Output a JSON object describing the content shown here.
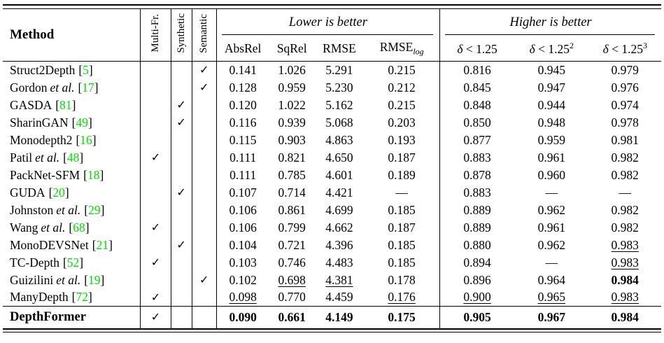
{
  "table": {
    "method_header": "Method",
    "rotated_headers": [
      "Multi-Fr.",
      "Synthetic",
      "Semantic"
    ],
    "groups": {
      "lower": "Lower is better",
      "higher": "Higher is better"
    },
    "metric_headers": [
      "AbsRel",
      "SqRel",
      "RMSE"
    ],
    "rmse_log_header": {
      "base": "RMSE",
      "sub": "log"
    },
    "delta_headers": [
      {
        "sym": "δ",
        "rest": " < 1.25",
        "sup": ""
      },
      {
        "sym": "δ",
        "rest": " < 1.25",
        "sup": "2"
      },
      {
        "sym": "δ",
        "rest": " < 1.25",
        "sup": "3"
      }
    ],
    "checkmark": "✓",
    "dash": "—",
    "citation_color": "#00e000",
    "rows": [
      {
        "name": "Struct2Depth",
        "etal": false,
        "cite": "5",
        "checks": [
          false,
          false,
          true
        ],
        "vals": [
          "0.141",
          "1.026",
          "5.291",
          "0.215",
          "0.816",
          "0.945",
          "0.979"
        ],
        "marks": [
          "",
          "",
          "",
          "",
          "",
          "",
          ""
        ]
      },
      {
        "name": "Gordon",
        "etal": true,
        "cite": "17",
        "checks": [
          false,
          false,
          true
        ],
        "vals": [
          "0.128",
          "0.959",
          "5.230",
          "0.212",
          "0.845",
          "0.947",
          "0.976"
        ],
        "marks": [
          "",
          "",
          "",
          "",
          "",
          "",
          ""
        ]
      },
      {
        "name": "GASDA",
        "etal": false,
        "cite": "81",
        "checks": [
          false,
          true,
          false
        ],
        "vals": [
          "0.120",
          "1.022",
          "5.162",
          "0.215",
          "0.848",
          "0.944",
          "0.974"
        ],
        "marks": [
          "",
          "",
          "",
          "",
          "",
          "",
          ""
        ]
      },
      {
        "name": "SharinGAN",
        "etal": false,
        "cite": "49",
        "checks": [
          false,
          true,
          false
        ],
        "vals": [
          "0.116",
          "0.939",
          "5.068",
          "0.203",
          "0.850",
          "0.948",
          "0.978"
        ],
        "marks": [
          "",
          "",
          "",
          "",
          "",
          "",
          ""
        ]
      },
      {
        "name": "Monodepth2",
        "etal": false,
        "cite": "16",
        "checks": [
          false,
          false,
          false
        ],
        "vals": [
          "0.115",
          "0.903",
          "4.863",
          "0.193",
          "0.877",
          "0.959",
          "0.981"
        ],
        "marks": [
          "",
          "",
          "",
          "",
          "",
          "",
          ""
        ]
      },
      {
        "name": "Patil",
        "etal": true,
        "cite": "48",
        "checks": [
          true,
          false,
          false
        ],
        "vals": [
          "0.111",
          "0.821",
          "4.650",
          "0.187",
          "0.883",
          "0.961",
          "0.982"
        ],
        "marks": [
          "",
          "",
          "",
          "",
          "",
          "",
          ""
        ]
      },
      {
        "name": "PackNet-SFM",
        "etal": false,
        "cite": "18",
        "checks": [
          false,
          false,
          false
        ],
        "vals": [
          "0.111",
          "0.785",
          "4.601",
          "0.189",
          "0.878",
          "0.960",
          "0.982"
        ],
        "marks": [
          "",
          "",
          "",
          "",
          "",
          "",
          ""
        ]
      },
      {
        "name": "GUDA",
        "etal": false,
        "cite": "20",
        "checks": [
          false,
          true,
          false
        ],
        "vals": [
          "0.107",
          "0.714",
          "4.421",
          "—",
          "0.883",
          "—",
          "—"
        ],
        "marks": [
          "",
          "",
          "",
          "",
          "",
          "",
          ""
        ]
      },
      {
        "name": "Johnston",
        "etal": true,
        "cite": "29",
        "checks": [
          false,
          false,
          false
        ],
        "vals": [
          "0.106",
          "0.861",
          "4.699",
          "0.185",
          "0.889",
          "0.962",
          "0.982"
        ],
        "marks": [
          "",
          "",
          "",
          "",
          "",
          "",
          ""
        ]
      },
      {
        "name": "Wang",
        "etal": true,
        "cite": "68",
        "checks": [
          true,
          false,
          false
        ],
        "vals": [
          "0.106",
          "0.799",
          "4.662",
          "0.187",
          "0.889",
          "0.961",
          "0.982"
        ],
        "marks": [
          "",
          "",
          "",
          "",
          "",
          "",
          ""
        ]
      },
      {
        "name": "MonoDEVSNet",
        "etal": false,
        "cite": "21",
        "checks": [
          false,
          true,
          false
        ],
        "vals": [
          "0.104",
          "0.721",
          "4.396",
          "0.185",
          "0.880",
          "0.962",
          "0.983"
        ],
        "marks": [
          "",
          "",
          "",
          "",
          "",
          "",
          "u"
        ]
      },
      {
        "name": "TC-Depth",
        "etal": false,
        "cite": "52",
        "checks": [
          true,
          false,
          false
        ],
        "vals": [
          "0.103",
          "0.746",
          "4.483",
          "0.185",
          "0.894",
          "—",
          "0.983"
        ],
        "marks": [
          "",
          "",
          "",
          "",
          "",
          "",
          "u"
        ]
      },
      {
        "name": "Guizilini",
        "etal": true,
        "cite": "19",
        "checks": [
          false,
          false,
          true
        ],
        "vals": [
          "0.102",
          "0.698",
          "4.381",
          "0.178",
          "0.896",
          "0.964",
          "0.984"
        ],
        "marks": [
          "",
          "u",
          "u",
          "",
          "",
          "",
          "b"
        ]
      },
      {
        "name": "ManyDepth",
        "etal": false,
        "cite": "72",
        "checks": [
          true,
          false,
          false
        ],
        "vals": [
          "0.098",
          "0.770",
          "4.459",
          "0.176",
          "0.900",
          "0.965",
          "0.983"
        ],
        "marks": [
          "u",
          "",
          "",
          "u",
          "u",
          "u",
          "u"
        ]
      },
      {
        "name": "DepthFormer",
        "etal": false,
        "cite": "",
        "checks": [
          true,
          false,
          false
        ],
        "vals": [
          "0.090",
          "0.661",
          "4.149",
          "0.175",
          "0.905",
          "0.967",
          "0.984"
        ],
        "marks": [
          "b",
          "b",
          "b",
          "b",
          "b",
          "b",
          "b"
        ],
        "final": true
      }
    ]
  }
}
